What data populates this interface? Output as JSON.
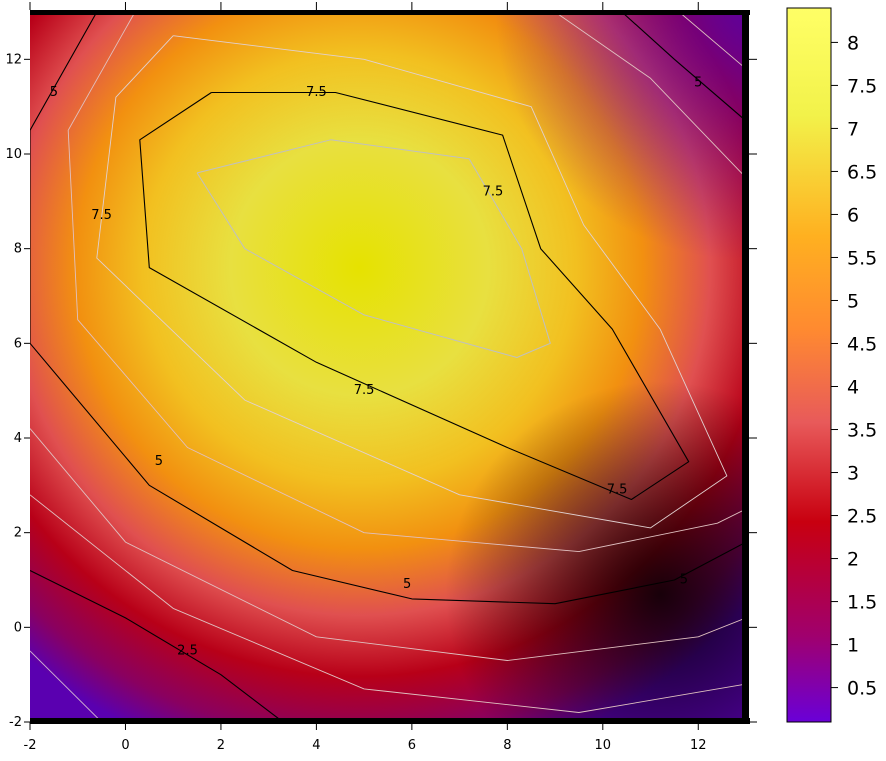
{
  "chart_data": {
    "type": "heatmap",
    "subtype": "filled-contour",
    "title": "",
    "xlabel": "",
    "ylabel": "",
    "xlim": [
      -2,
      13
    ],
    "ylim": [
      -2,
      13
    ],
    "x_ticks": [
      "-2",
      "0",
      "2",
      "4",
      "6",
      "8",
      "10",
      "12"
    ],
    "y_ticks": [
      "-2",
      "0",
      "2",
      "4",
      "6",
      "8",
      "10",
      "12"
    ],
    "colorbar": {
      "range": [
        0.1,
        8.4
      ],
      "ticks": [
        "0.5",
        "1",
        "1.5",
        "2",
        "2.5",
        "3",
        "3.5",
        "4",
        "4.5",
        "5",
        "5.5",
        "6",
        "6.5",
        "7",
        "7.5",
        "8"
      ],
      "colormap": [
        "#6a00d8",
        "#a0006e",
        "#c80010",
        "#e85a5a",
        "#ff8a30",
        "#ffb020",
        "#f2f24a",
        "#ffff66"
      ]
    },
    "contour_levels_labeled": [
      "2.5",
      "5",
      "7.5"
    ],
    "contour_labels": [
      {
        "text": "5",
        "x": -1.5,
        "y": 11.3
      },
      {
        "text": "7.5",
        "x": 4.0,
        "y": 11.3
      },
      {
        "text": "7.5",
        "x": -0.5,
        "y": 8.7
      },
      {
        "text": "7.5",
        "x": 7.7,
        "y": 9.2
      },
      {
        "text": "7.5",
        "x": 5.0,
        "y": 5.0
      },
      {
        "text": "7.5",
        "x": 10.3,
        "y": 2.9
      },
      {
        "text": "5",
        "x": 12.0,
        "y": 11.5
      },
      {
        "text": "5",
        "x": 0.7,
        "y": 3.5
      },
      {
        "text": "5",
        "x": 5.9,
        "y": 0.9
      },
      {
        "text": "5",
        "x": 11.7,
        "y": 1.0
      },
      {
        "text": "2.5",
        "x": 1.3,
        "y": -0.5
      }
    ],
    "features": {
      "peak_value": 8.3,
      "peak_region_center": [
        5.5,
        7.5
      ],
      "dark_shadow_region": [
        11,
        1
      ],
      "low_corners": [
        "bottom-left",
        "top-right",
        "bottom-right"
      ]
    },
    "grid": false,
    "legend": "colorbar-right"
  }
}
